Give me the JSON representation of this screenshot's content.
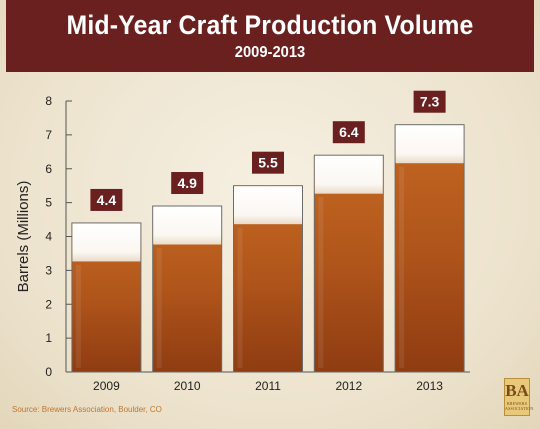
{
  "header": {
    "title": "Mid-Year Craft Production Volume",
    "subtitle": "2009-2013"
  },
  "footer": {
    "source": "Source: Brewers Association, Boulder, CO"
  },
  "logo": {
    "monogram": "BA",
    "text": "BREWERS ASSOCIATION"
  },
  "colors": {
    "banner": "#6b2020",
    "beer_top": "#b85a1e",
    "beer_bottom": "#8f3c12",
    "foam": "#ffffff",
    "label_box": "#6b2020"
  },
  "chart_data": {
    "type": "bar",
    "title": "Mid-Year Craft Production Volume",
    "subtitle": "2009-2013",
    "xlabel": "",
    "ylabel": "Barrels (Millions)",
    "categories": [
      "2009",
      "2010",
      "2011",
      "2012",
      "2013"
    ],
    "values": [
      4.4,
      4.9,
      5.5,
      6.4,
      7.3
    ],
    "data_labels": [
      "4.4",
      "4.9",
      "5.5",
      "6.4",
      "7.3"
    ],
    "ylim": [
      0,
      8
    ],
    "yticks": [
      "0",
      "1",
      "2",
      "3",
      "4",
      "5",
      "6",
      "7",
      "8"
    ],
    "grid": false
  }
}
